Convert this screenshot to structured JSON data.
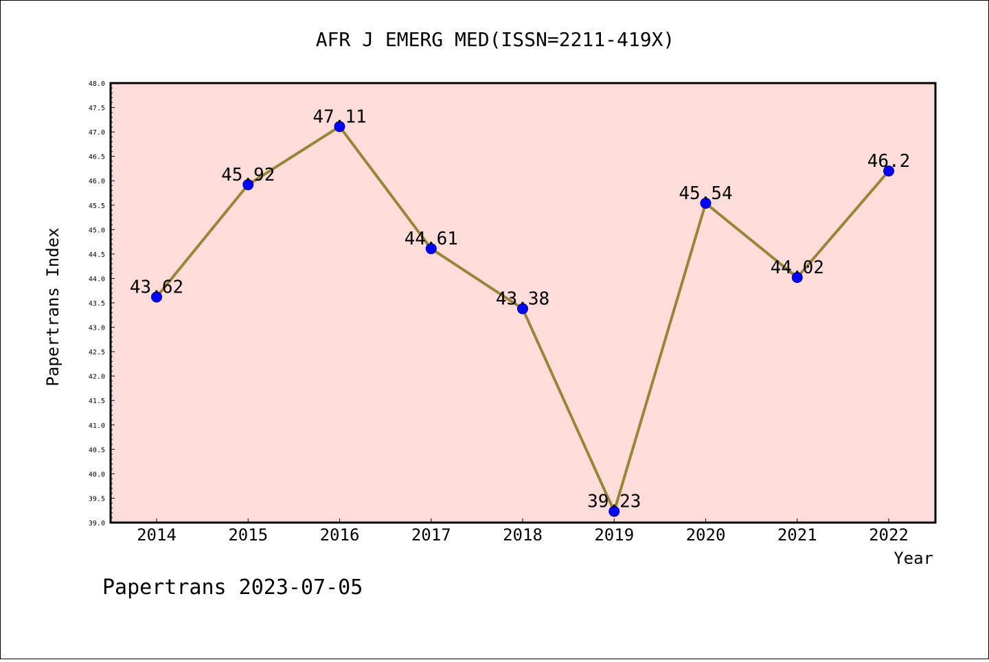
{
  "chart_data": {
    "type": "line",
    "title": "AFR J EMERG MED(ISSN=2211-419X)",
    "xlabel": "Year",
    "ylabel": "Papertrans Index",
    "categories": [
      "2014",
      "2015",
      "2016",
      "2017",
      "2018",
      "2019",
      "2020",
      "2021",
      "2022"
    ],
    "values": [
      43.62,
      45.92,
      47.11,
      44.61,
      43.38,
      39.23,
      45.54,
      44.02,
      46.2
    ],
    "data_labels": [
      "43.62",
      "45.92",
      "47.11",
      "44.61",
      "43.38",
      "39.23",
      "45.54",
      "44.02",
      "46.2"
    ],
    "ylim": [
      39.0,
      48.0
    ],
    "ytick_step": 0.5,
    "ytick_labels": [
      "39.0",
      "39.5",
      "40.0",
      "40.5",
      "41.0",
      "41.5",
      "42.0",
      "42.5",
      "43.0",
      "43.5",
      "44.0",
      "44.5",
      "45.0",
      "45.5",
      "46.0",
      "46.5",
      "47.0",
      "47.5",
      "48.0"
    ],
    "grid": false,
    "colors": {
      "plot_background": "#fddcd9",
      "line": "#9a8437",
      "marker_fill": "#0000ff",
      "marker_edge": "#00008b"
    }
  },
  "footer": {
    "text": "Papertrans 2023-07-05"
  }
}
